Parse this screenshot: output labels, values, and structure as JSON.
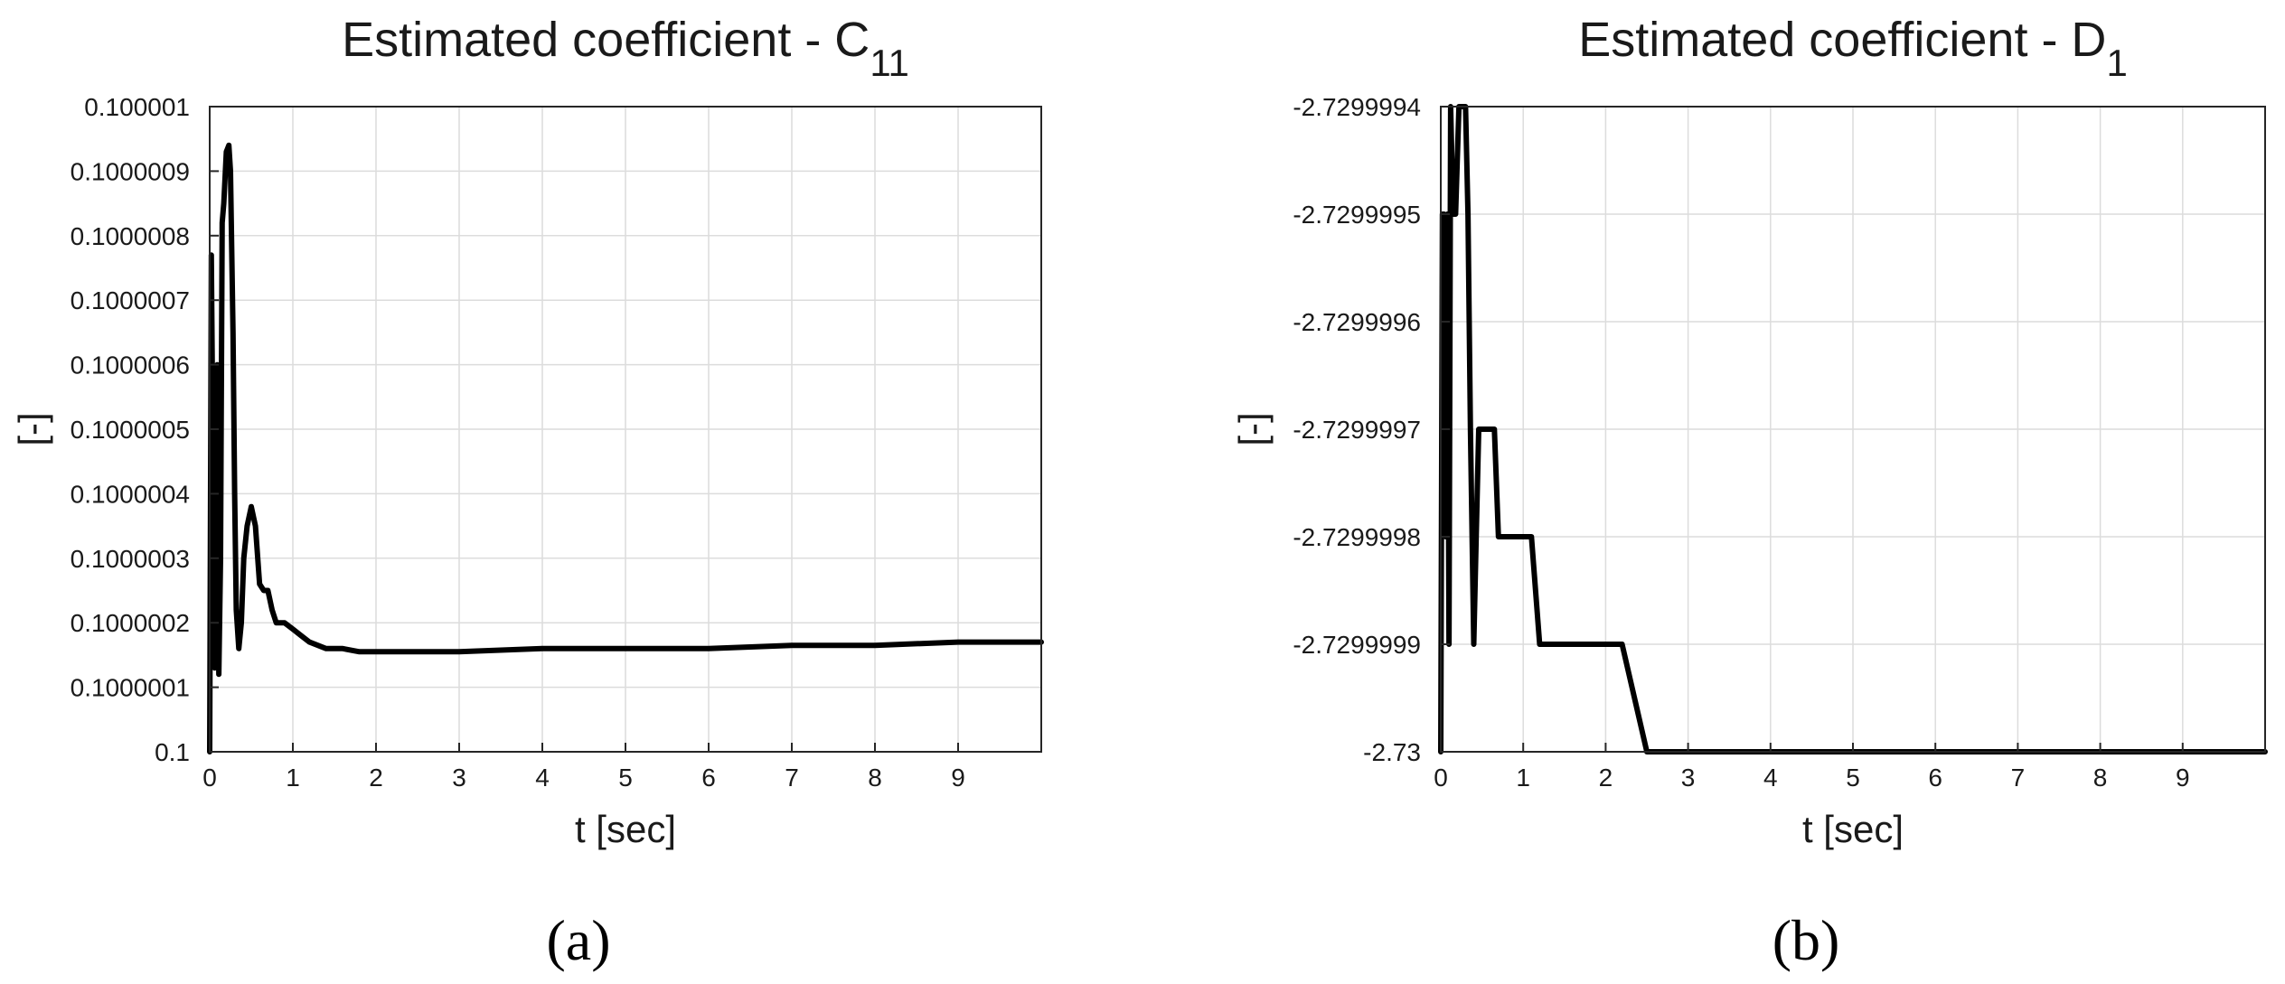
{
  "chart_data": [
    {
      "panel_label": "(a)",
      "type": "line",
      "title": "Estimated coefficient - C",
      "title_subscript": "11",
      "xlabel": "t [sec]",
      "ylabel": "[-]",
      "xlim": [
        0,
        10
      ],
      "ylim": [
        0.1,
        0.100001
      ],
      "grid": true,
      "xticks": [
        0,
        1,
        2,
        3,
        4,
        5,
        6,
        7,
        8,
        9
      ],
      "xtick_labels": [
        "0",
        "1",
        "2",
        "3",
        "4",
        "5",
        "6",
        "7",
        "8",
        "9"
      ],
      "yticks": [
        0.1,
        0.1000001,
        0.1000002,
        0.1000003,
        0.1000004,
        0.1000005,
        0.1000006,
        0.1000007,
        0.1000008,
        0.1000009,
        0.100001
      ],
      "ytick_labels": [
        "0.1",
        "0.1000001",
        "0.1000002",
        "0.1000003",
        "0.1000004",
        "0.1000005",
        "0.1000006",
        "0.1000007",
        "0.1000008",
        "0.1000009",
        "0.100001"
      ],
      "series": [
        {
          "color": "#000000",
          "x": [
            0,
            0.02,
            0.04,
            0.06,
            0.09,
            0.11,
            0.13,
            0.15,
            0.17,
            0.2,
            0.23,
            0.25,
            0.28,
            0.3,
            0.32,
            0.35,
            0.38,
            0.41,
            0.45,
            0.5,
            0.55,
            0.6,
            0.65,
            0.7,
            0.75,
            0.8,
            0.85,
            0.9,
            1.0,
            1.1,
            1.2,
            1.4,
            1.6,
            1.8,
            2.0,
            2.5,
            3.0,
            4.0,
            5.0,
            6.0,
            7.0,
            8.0,
            9.0,
            10.0
          ],
          "y": [
            0.1,
            0.10000077,
            0.10000045,
            0.10000013,
            0.1000006,
            0.10000012,
            0.1000003,
            0.10000082,
            0.10000085,
            0.10000093,
            0.10000094,
            0.1000009,
            0.10000065,
            0.1000004,
            0.10000022,
            0.10000016,
            0.1000002,
            0.1000003,
            0.10000035,
            0.10000038,
            0.10000035,
            0.10000026,
            0.10000025,
            0.10000025,
            0.10000022,
            0.1000002,
            0.1000002,
            0.1000002,
            0.10000019,
            0.10000018,
            0.10000017,
            0.10000016,
            0.10000016,
            0.100000155,
            0.100000155,
            0.100000155,
            0.100000155,
            0.10000016,
            0.10000016,
            0.10000016,
            0.100000165,
            0.100000165,
            0.10000017,
            0.10000017
          ]
        }
      ]
    },
    {
      "panel_label": "(b)",
      "type": "line",
      "title": "Estimated coefficient - D",
      "title_subscript": "1",
      "xlabel": "t [sec]",
      "ylabel": "[-]",
      "xlim": [
        0,
        10
      ],
      "ylim": [
        -2.73,
        -2.7299994
      ],
      "grid": true,
      "xticks": [
        0,
        1,
        2,
        3,
        4,
        5,
        6,
        7,
        8,
        9
      ],
      "xtick_labels": [
        "0",
        "1",
        "2",
        "3",
        "4",
        "5",
        "6",
        "7",
        "8",
        "9"
      ],
      "yticks": [
        -2.73,
        -2.7299999,
        -2.7299998,
        -2.7299997,
        -2.7299996,
        -2.7299995,
        -2.7299994
      ],
      "ytick_labels": [
        "-2.73",
        "-2.7299999",
        "-2.7299998",
        "-2.7299997",
        "-2.7299996",
        "-2.7299995",
        "-2.7299994"
      ],
      "series": [
        {
          "color": "#000000",
          "x": [
            0,
            0.02,
            0.04,
            0.06,
            0.08,
            0.1,
            0.12,
            0.15,
            0.18,
            0.22,
            0.26,
            0.3,
            0.33,
            0.36,
            0.4,
            0.43,
            0.46,
            0.5,
            0.55,
            0.6,
            0.65,
            0.7,
            0.75,
            0.8,
            0.85,
            0.9,
            1.0,
            1.1,
            1.2,
            1.3,
            1.4,
            1.5,
            1.6,
            1.8,
            2.0,
            2.2,
            2.5,
            3.0,
            3.5,
            4.0,
            5.0,
            6.0,
            7.0,
            8.0,
            9.0,
            10.0
          ],
          "y": [
            -2.73,
            -2.7299995,
            -2.7299995,
            -2.7299998,
            -2.7299995,
            -2.7299999,
            -2.7299994,
            -2.7299995,
            -2.7299995,
            -2.7299994,
            -2.7299994,
            -2.7299994,
            -2.7299995,
            -2.7299997,
            -2.7299999,
            -2.7299998,
            -2.7299997,
            -2.7299997,
            -2.7299997,
            -2.7299997,
            -2.7299997,
            -2.7299998,
            -2.7299998,
            -2.7299998,
            -2.7299998,
            -2.7299998,
            -2.7299998,
            -2.7299998,
            -2.7299999,
            -2.7299999,
            -2.7299999,
            -2.7299999,
            -2.7299999,
            -2.7299999,
            -2.7299999,
            -2.7299999,
            -2.73,
            -2.73,
            -2.73,
            -2.73,
            -2.73,
            -2.73,
            -2.73,
            -2.73,
            -2.73,
            -2.73
          ]
        }
      ]
    }
  ]
}
